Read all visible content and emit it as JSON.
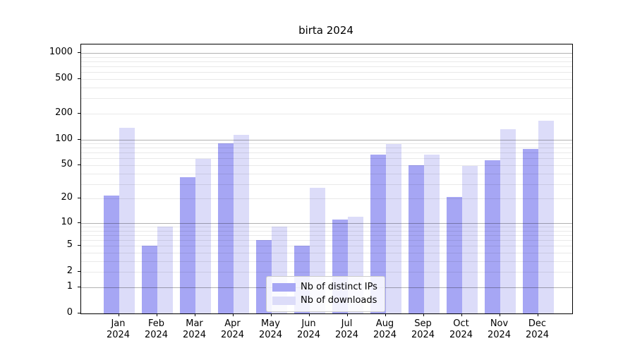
{
  "title": "birta 2024",
  "chart_data": {
    "type": "bar",
    "title": "birta 2024",
    "categories": [
      "Jan",
      "Feb",
      "Mar",
      "Apr",
      "May",
      "Jun",
      "Jul",
      "Aug",
      "Sep",
      "Oct",
      "Nov",
      "Dec"
    ],
    "year": "2024",
    "series": [
      {
        "name": "Nb of distinct IPs",
        "color": "#a6a6f4",
        "values": [
          22,
          5,
          36,
          90,
          6,
          5,
          11,
          66,
          50,
          21,
          57,
          77
        ]
      },
      {
        "name": "Nb of downloads",
        "color": "#dcdcf9",
        "values": [
          136,
          9,
          59,
          113,
          9,
          27,
          12,
          89,
          66,
          49,
          132,
          165
        ]
      }
    ],
    "yscale": "log1p",
    "yticks": [
      0,
      1,
      2,
      5,
      10,
      20,
      50,
      100,
      200,
      500,
      1000
    ],
    "ytick_labels": [
      "0",
      "1",
      "2",
      "5",
      "10",
      "20",
      "50",
      "100",
      "200",
      "500",
      "1000"
    ],
    "ylim": [
      0,
      1250
    ],
    "grid": true,
    "legend_position": "inside-bottom-center"
  },
  "colors": {
    "background": "#ffffff",
    "spine": "#000000",
    "major_grid": "#b5b5b5",
    "minor_grid": "#e9e9e9",
    "bar_ips": "#a6a6f4",
    "bar_downloads": "#dcdcf9",
    "legend_border": "#cccccc"
  }
}
